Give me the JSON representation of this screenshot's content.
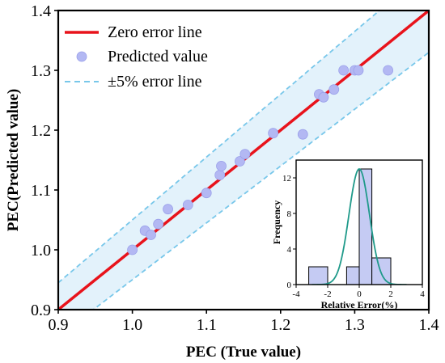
{
  "chart_data": [
    {
      "type": "scatter",
      "xlabel": "PEC (True value)",
      "ylabel": "PEC(Predicted value)",
      "xlim": [
        0.9,
        1.4
      ],
      "ylim": [
        0.9,
        1.4
      ],
      "xticks": [
        "0.9",
        "1.0",
        "1.1",
        "1.2",
        "1.3",
        "1.4"
      ],
      "yticks": [
        "0.9",
        "1.0",
        "1.1",
        "1.2",
        "1.3",
        "1.4"
      ],
      "legend_position": "top-left",
      "band_percent": 5,
      "series": [
        {
          "name": "Zero error line",
          "kind": "line",
          "color": "#e8131b",
          "x": [
            0.9,
            1.4
          ],
          "y": [
            0.9,
            1.4
          ]
        },
        {
          "name": "Predicted value",
          "kind": "scatter",
          "color": "#b3b8f3",
          "x": [
            1.0,
            1.017,
            1.025,
            1.035,
            1.048,
            1.075,
            1.1,
            1.118,
            1.12,
            1.145,
            1.152,
            1.19,
            1.23,
            1.252,
            1.258,
            1.272,
            1.285,
            1.3,
            1.305,
            1.345
          ],
          "y": [
            1.0,
            1.032,
            1.025,
            1.043,
            1.068,
            1.075,
            1.095,
            1.125,
            1.14,
            1.148,
            1.16,
            1.195,
            1.193,
            1.26,
            1.255,
            1.268,
            1.3,
            1.3,
            1.3,
            1.3
          ]
        },
        {
          "name": "±5% error line",
          "kind": "dashed",
          "color": "#78c7ea"
        }
      ]
    },
    {
      "type": "bar",
      "role": "inset-histogram",
      "xlabel": "Relative Error(%)",
      "ylabel": "Frequency",
      "xlim": [
        -4,
        4
      ],
      "ylim": [
        0,
        14
      ],
      "xticks": [
        "-4",
        "-2",
        "0",
        "2",
        "4"
      ],
      "yticks": [
        "0",
        "4",
        "8",
        "12"
      ],
      "bins": [
        [
          -3.2,
          -2.0
        ],
        [
          -0.8,
          0.0
        ],
        [
          0.0,
          0.8
        ],
        [
          0.8,
          2.0
        ]
      ],
      "values": [
        2,
        2,
        13,
        3
      ],
      "bar_color": "#c5cbf3",
      "curve": {
        "type": "normal-fit",
        "mean": 0.0,
        "sd": 0.65,
        "peak": 13,
        "color": "#1f9a8a"
      }
    }
  ]
}
